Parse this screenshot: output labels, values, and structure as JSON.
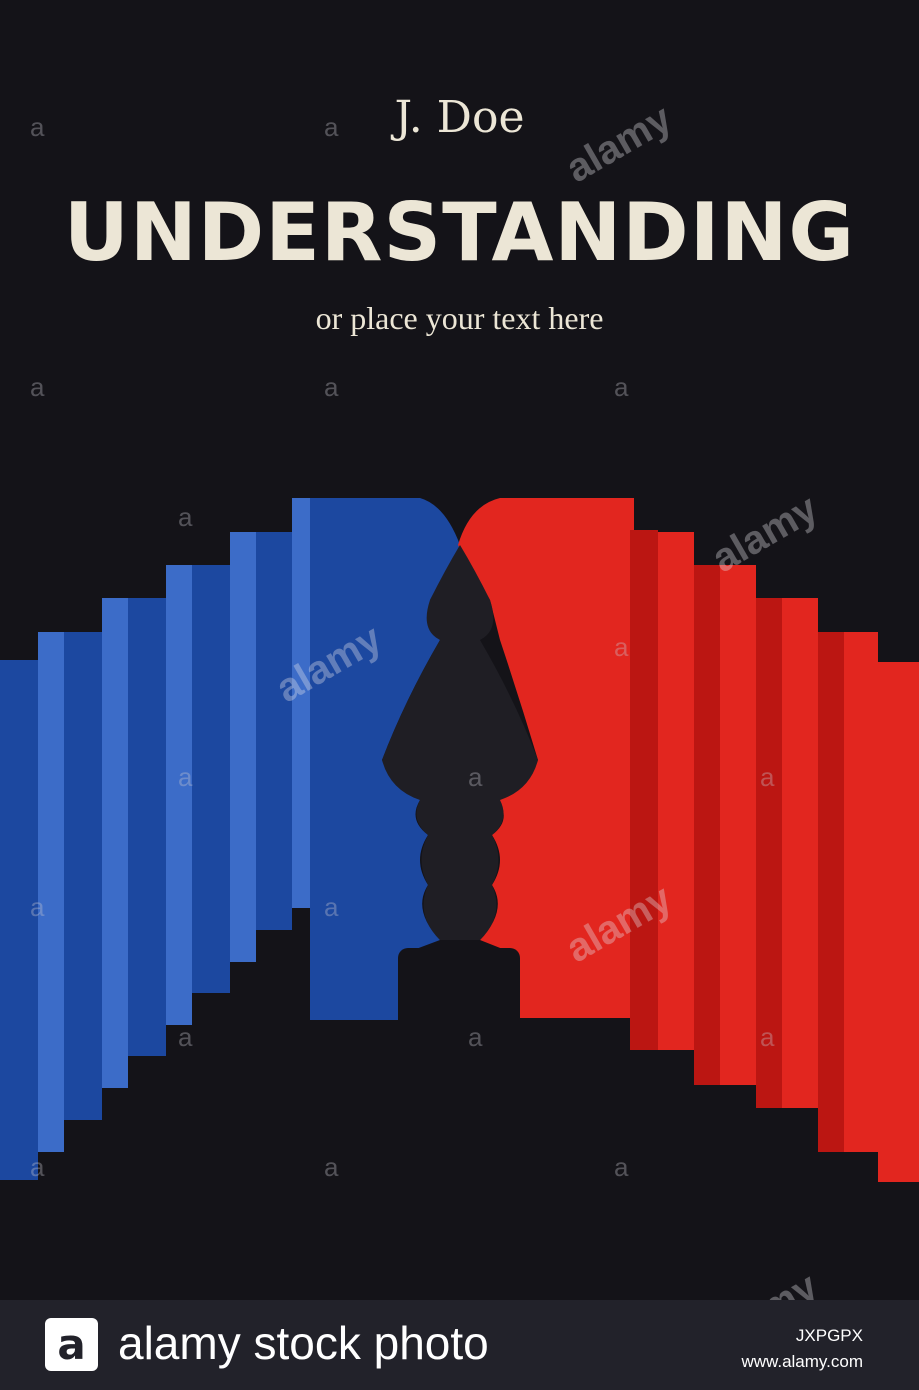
{
  "cover": {
    "author": "J. Doe",
    "title": "UNDERSTANDING",
    "subtitle": "or place your text here"
  },
  "watermark": {
    "letter": "a",
    "word": "alamy"
  },
  "banner": {
    "logo_letter": "a",
    "text": "alamy stock photo",
    "image_id": "JXPGPX",
    "url": "www.alamy.com"
  },
  "colors": {
    "background": "#141318",
    "text": "#ece6d6",
    "blue_light": "#3c6cc8",
    "blue_dark": "#1c48a0",
    "red_light": "#e2261f",
    "red_dark": "#bb1612",
    "banner": "#22222a"
  }
}
